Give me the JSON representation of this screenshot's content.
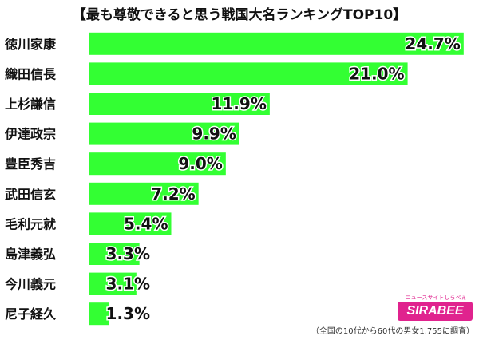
{
  "chart_data": {
    "type": "bar",
    "orientation": "horizontal",
    "title": "【最も尊敬できると思う戦国大名ランキングTOP10】",
    "categories": [
      "徳川家康",
      "織田信長",
      "上杉謙信",
      "伊達政宗",
      "豊臣秀吉",
      "武田信玄",
      "毛利元就",
      "島津義弘",
      "今川義元",
      "尼子経久"
    ],
    "values": [
      24.7,
      21.0,
      11.9,
      9.9,
      9.0,
      7.2,
      5.4,
      3.3,
      3.1,
      1.3
    ],
    "value_labels": [
      "24.7%",
      "21.0%",
      "11.9%",
      "9.9%",
      "9.0%",
      "7.2%",
      "5.4%",
      "3.3%",
      "3.1%",
      "1.3%"
    ],
    "unit": "%",
    "xlim": [
      0,
      25.5
    ],
    "grid": false,
    "bar_color": "#33ff33"
  },
  "brand": {
    "name": "SIRABEE",
    "tagline": "ニュースサイトしらべぇ",
    "color": "#e0238e"
  },
  "footnote": "（全国の10代から60代の男女1,755に調査）"
}
